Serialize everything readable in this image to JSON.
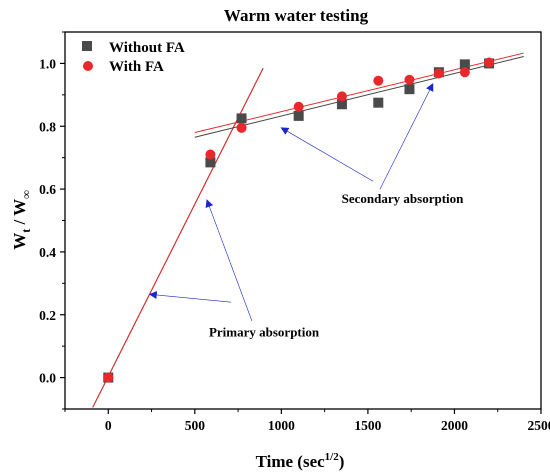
{
  "chart_data": {
    "type": "scatter",
    "title": "Warm water testing",
    "xlabel": {
      "main": "Time (sec",
      "sup": "1/2",
      "tail": ")"
    },
    "ylabel": {
      "main": "W",
      "sub1": "t",
      "mid": " / W",
      "sub2": "∞"
    },
    "xlim": [
      -250,
      2500
    ],
    "ylim": [
      -0.1,
      1.1
    ],
    "x_ticks": [
      0,
      500,
      1000,
      1500,
      2000,
      2500
    ],
    "y_ticks": [
      0.0,
      0.2,
      0.4,
      0.6,
      0.8,
      1.0
    ],
    "grid": false,
    "legend_position": "top-left",
    "series": [
      {
        "name": "Without FA",
        "marker": "square",
        "color": "#4a4a4a",
        "points": [
          {
            "x": 0,
            "y": 0.0
          },
          {
            "x": 590,
            "y": 0.685
          },
          {
            "x": 770,
            "y": 0.825
          },
          {
            "x": 1100,
            "y": 0.833
          },
          {
            "x": 1350,
            "y": 0.87
          },
          {
            "x": 1560,
            "y": 0.875
          },
          {
            "x": 1740,
            "y": 0.918
          },
          {
            "x": 1910,
            "y": 0.972
          },
          {
            "x": 2060,
            "y": 0.997
          },
          {
            "x": 2200,
            "y": 1.0
          }
        ]
      },
      {
        "name": "With FA",
        "marker": "circle",
        "color": "#e8292b",
        "points": [
          {
            "x": 0,
            "y": 0.0
          },
          {
            "x": 590,
            "y": 0.71
          },
          {
            "x": 770,
            "y": 0.795
          },
          {
            "x": 1100,
            "y": 0.862
          },
          {
            "x": 1350,
            "y": 0.895
          },
          {
            "x": 1560,
            "y": 0.945
          },
          {
            "x": 1740,
            "y": 0.948
          },
          {
            "x": 1910,
            "y": 0.968
          },
          {
            "x": 2060,
            "y": 0.972
          },
          {
            "x": 2200,
            "y": 1.003
          }
        ]
      }
    ],
    "fit_lines": [
      {
        "series": "Without FA",
        "color": "#444444",
        "x1": -90,
        "y1": -0.095,
        "x2": 895,
        "y2": 0.985
      },
      {
        "series": "With FA",
        "color": "#e8292b",
        "x1": -90,
        "y1": -0.095,
        "x2": 890,
        "y2": 0.98
      },
      {
        "series": "Without FA",
        "color": "#444444",
        "x1": 500,
        "y1": 0.765,
        "x2": 2400,
        "y2": 1.022
      },
      {
        "series": "With FA",
        "color": "#e8292b",
        "x1": 500,
        "y1": 0.78,
        "x2": 2400,
        "y2": 1.033
      }
    ],
    "annotations": [
      {
        "text": "Primary absorption",
        "anchor": {
          "x": 900,
          "y": 0.13
        },
        "arrows": [
          {
            "from": {
              "x": 710,
              "y": 0.24
            },
            "to": {
              "x": 240,
              "y": 0.265
            }
          },
          {
            "from": {
              "x": 830,
              "y": 0.18
            },
            "to": {
              "x": 570,
              "y": 0.565
            }
          }
        ]
      },
      {
        "text": "Secondary absorption",
        "anchor": {
          "x": 1700,
          "y": 0.555
        },
        "arrows": [
          {
            "from": {
              "x": 1530,
              "y": 0.625
            },
            "to": {
              "x": 1000,
              "y": 0.795
            }
          },
          {
            "from": {
              "x": 1570,
              "y": 0.6
            },
            "to": {
              "x": 1875,
              "y": 0.935
            }
          }
        ]
      }
    ],
    "colors": {
      "arrow": "#1a27c9",
      "axis": "#000000"
    }
  }
}
